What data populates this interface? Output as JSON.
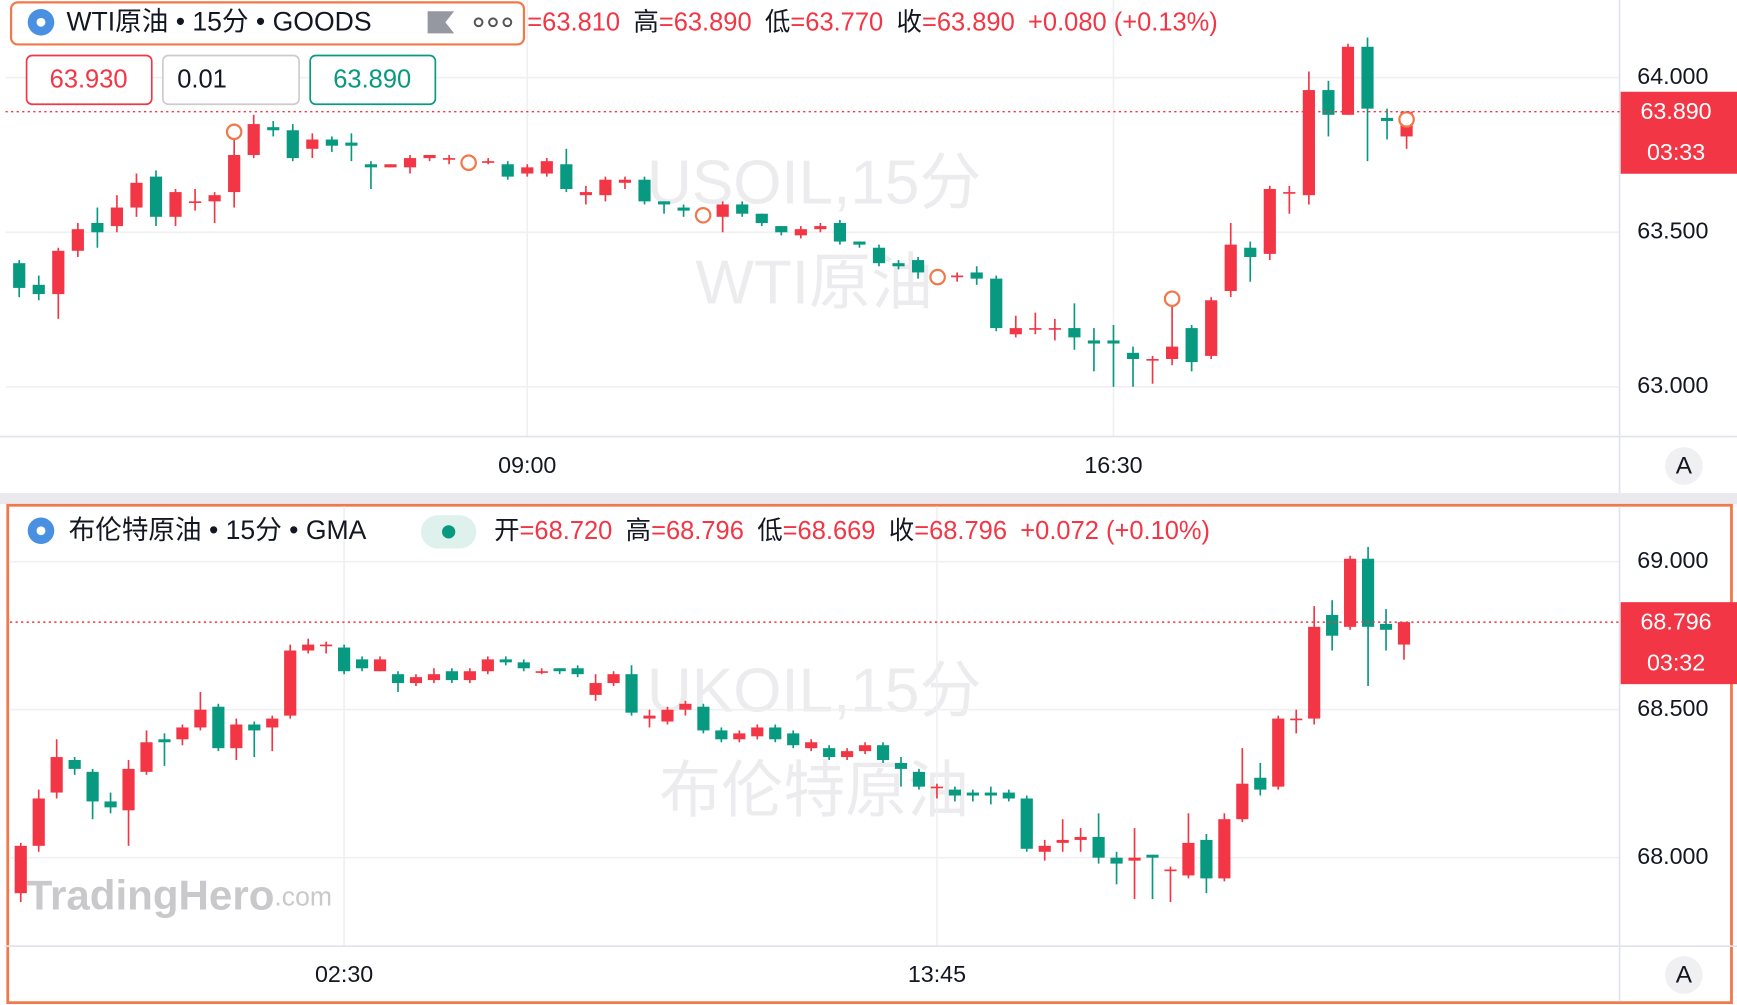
{
  "chart_data": [
    {
      "type": "candlestick",
      "title": "WTI原油 • 15分 • GOODS",
      "info": [
        {
          "value_label": "=63.810"
        },
        {
          "label": "高",
          "value_label": "=63.890"
        },
        {
          "label": "低",
          "value_label": "=63.770"
        },
        {
          "label": "收",
          "value_label": "=63.890"
        },
        {
          "value_label": "+0.080 (+0.13%)"
        }
      ],
      "order": {
        "sell": "63.930",
        "qty": "0.01",
        "buy": "63.890"
      },
      "watermark": [
        "USOIL,15分",
        "WTI原油"
      ],
      "open": [
        63.4,
        63.33,
        63.3,
        63.44,
        63.53,
        63.52,
        63.58,
        63.68,
        63.55,
        63.6,
        63.6,
        63.63,
        63.75,
        63.84,
        63.83,
        63.77,
        63.8,
        63.79,
        63.72,
        63.71,
        63.71,
        63.74,
        63.74,
        63.74,
        63.73,
        63.72,
        63.69,
        63.69,
        63.72,
        63.62,
        63.62,
        63.66,
        63.67,
        63.6,
        63.58,
        63.57,
        63.55,
        63.59,
        63.56,
        63.52,
        63.49,
        63.51,
        63.53,
        63.47,
        63.45,
        63.4,
        63.41,
        63.35,
        63.36,
        63.37,
        63.35,
        63.17,
        63.19,
        63.19,
        63.19,
        63.15,
        63.15,
        63.11,
        63.09,
        63.09,
        63.19,
        63.1,
        63.31,
        63.45,
        63.43,
        63.63,
        63.62,
        63.96,
        63.88,
        64.1,
        63.87,
        63.81
      ],
      "high": [
        63.41,
        63.36,
        63.45,
        63.53,
        63.58,
        63.62,
        63.69,
        63.7,
        63.64,
        63.64,
        63.63,
        63.85,
        63.88,
        63.86,
        63.85,
        63.82,
        63.81,
        63.82,
        63.73,
        63.72,
        63.75,
        63.75,
        63.75,
        63.75,
        63.74,
        63.73,
        63.72,
        63.74,
        63.77,
        63.65,
        63.68,
        63.68,
        63.68,
        63.6,
        63.59,
        63.58,
        63.6,
        63.6,
        63.56,
        63.52,
        63.52,
        63.53,
        63.54,
        63.47,
        63.46,
        63.41,
        63.42,
        63.38,
        63.37,
        63.39,
        63.36,
        63.23,
        63.24,
        63.22,
        63.27,
        63.19,
        63.2,
        63.13,
        63.1,
        63.31,
        63.2,
        63.29,
        63.53,
        63.47,
        63.65,
        63.65,
        64.02,
        63.99,
        64.11,
        64.13,
        63.9,
        63.89
      ],
      "low": [
        63.29,
        63.28,
        63.22,
        63.42,
        63.45,
        63.5,
        63.55,
        63.52,
        63.52,
        63.57,
        63.53,
        63.58,
        63.74,
        63.81,
        63.73,
        63.74,
        63.76,
        63.73,
        63.64,
        63.71,
        63.69,
        63.73,
        63.72,
        63.72,
        63.72,
        63.67,
        63.68,
        63.68,
        63.63,
        63.59,
        63.6,
        63.64,
        63.59,
        63.56,
        63.55,
        63.55,
        63.5,
        63.55,
        63.52,
        63.49,
        63.48,
        63.5,
        63.46,
        63.45,
        63.39,
        63.38,
        63.35,
        63.34,
        63.34,
        63.33,
        63.18,
        63.16,
        63.17,
        63.15,
        63.12,
        63.05,
        63.0,
        63.0,
        63.01,
        63.07,
        63.05,
        63.09,
        63.29,
        63.34,
        63.41,
        63.56,
        63.59,
        63.81,
        63.88,
        63.73,
        63.8,
        63.77
      ],
      "close": [
        63.32,
        63.3,
        63.44,
        63.51,
        63.5,
        63.58,
        63.66,
        63.55,
        63.63,
        63.6,
        63.62,
        63.75,
        63.85,
        63.83,
        63.74,
        63.8,
        63.78,
        63.78,
        63.71,
        63.72,
        63.74,
        63.75,
        63.74,
        63.73,
        63.73,
        63.68,
        63.71,
        63.73,
        63.64,
        63.63,
        63.67,
        63.67,
        63.6,
        63.59,
        63.57,
        63.56,
        63.59,
        63.56,
        63.53,
        63.5,
        63.51,
        63.52,
        63.47,
        63.46,
        63.4,
        63.39,
        63.37,
        63.36,
        63.36,
        63.35,
        63.19,
        63.19,
        63.19,
        63.19,
        63.16,
        63.14,
        63.14,
        63.09,
        63.09,
        63.13,
        63.08,
        63.28,
        63.46,
        63.42,
        63.64,
        63.63,
        63.96,
        63.88,
        64.1,
        63.9,
        63.86,
        63.89
      ],
      "event_markers": [
        11,
        23,
        35,
        47,
        59,
        71
      ],
      "xlim": [
        -0.7,
        81.9
      ],
      "xticks": [
        {
          "value": 26,
          "label": "09:00"
        },
        {
          "value": 56,
          "label": "16:30"
        }
      ],
      "ylim": [
        62.839,
        64.251
      ],
      "yticks": [
        {
          "value": 63,
          "label": "63.000"
        },
        {
          "value": 63.5,
          "label": "63.500"
        },
        {
          "value": 64,
          "label": "64.000"
        }
      ],
      "last_price": {
        "value": 63.89,
        "label": "63.890"
      },
      "countdown": "03:33",
      "scale_button": "A",
      "up_color": "#f23645",
      "down_color": "#089981",
      "grid": true
    },
    {
      "type": "candlestick",
      "title": "布伦特原油 • 15分 • GMA",
      "info": [
        {
          "label": "开",
          "value_label": "=68.720"
        },
        {
          "label": "高",
          "value_label": "=68.796"
        },
        {
          "label": "低",
          "value_label": "=68.669"
        },
        {
          "label": "收",
          "value_label": "=68.796"
        },
        {
          "value_label": "+0.072 (+0.10%)"
        }
      ],
      "watermark": [
        "UKOIL,15分",
        "布伦特原油"
      ],
      "open": [
        67.88,
        68.04,
        68.22,
        68.33,
        68.29,
        68.19,
        68.16,
        68.29,
        68.4,
        68.4,
        68.44,
        68.51,
        68.37,
        68.45,
        68.44,
        68.48,
        68.7,
        68.72,
        68.71,
        68.67,
        68.63,
        68.62,
        68.59,
        68.6,
        68.63,
        68.6,
        68.63,
        68.67,
        68.66,
        68.63,
        68.64,
        68.64,
        68.55,
        68.59,
        68.62,
        68.47,
        68.46,
        68.5,
        68.51,
        68.43,
        68.4,
        68.41,
        68.44,
        68.42,
        68.37,
        68.37,
        68.34,
        68.36,
        68.38,
        68.32,
        68.29,
        68.24,
        68.23,
        68.22,
        68.22,
        68.22,
        68.2,
        68.02,
        68.05,
        68.06,
        68.07,
        68.0,
        67.99,
        68.01,
        67.96,
        67.94,
        68.06,
        67.93,
        68.13,
        68.27,
        68.24,
        68.47,
        68.47,
        68.82,
        68.78,
        69.01,
        68.79,
        68.72
      ],
      "high": [
        68.05,
        68.23,
        68.4,
        68.34,
        68.3,
        68.22,
        68.33,
        68.43,
        68.42,
        68.45,
        68.56,
        68.52,
        68.47,
        68.46,
        68.48,
        68.72,
        68.74,
        68.73,
        68.72,
        68.68,
        68.68,
        68.63,
        68.62,
        68.64,
        68.64,
        68.64,
        68.68,
        68.68,
        68.67,
        68.64,
        68.64,
        68.65,
        68.62,
        68.63,
        68.65,
        68.5,
        68.51,
        68.53,
        68.52,
        68.44,
        68.43,
        68.45,
        68.45,
        68.43,
        68.4,
        68.38,
        68.37,
        68.39,
        68.39,
        68.34,
        68.3,
        68.25,
        68.24,
        68.23,
        68.24,
        68.23,
        68.21,
        68.06,
        68.13,
        68.1,
        68.15,
        68.02,
        68.1,
        68.01,
        67.97,
        68.15,
        68.08,
        68.15,
        68.37,
        68.32,
        68.48,
        68.5,
        68.85,
        68.87,
        69.02,
        69.05,
        68.84,
        68.796
      ],
      "low": [
        67.85,
        68.02,
        68.2,
        68.28,
        68.13,
        68.15,
        68.04,
        68.28,
        68.31,
        68.38,
        68.43,
        68.36,
        68.33,
        68.34,
        68.36,
        68.47,
        68.69,
        68.69,
        68.62,
        68.63,
        68.63,
        68.56,
        68.58,
        68.59,
        68.59,
        68.59,
        68.62,
        68.65,
        68.63,
        68.62,
        68.62,
        68.61,
        68.53,
        68.58,
        68.48,
        68.44,
        68.45,
        68.48,
        68.42,
        68.39,
        68.39,
        68.4,
        68.39,
        68.37,
        68.36,
        68.33,
        68.33,
        68.35,
        68.32,
        68.24,
        68.23,
        68.2,
        68.19,
        68.19,
        68.18,
        68.19,
        68.02,
        67.99,
        68.02,
        68.02,
        67.98,
        67.91,
        67.86,
        67.86,
        67.85,
        67.93,
        67.88,
        67.92,
        68.12,
        68.21,
        68.23,
        68.42,
        68.45,
        68.7,
        68.77,
        68.58,
        68.7,
        68.669
      ],
      "close": [
        68.04,
        68.2,
        68.34,
        68.3,
        68.19,
        68.17,
        68.3,
        68.39,
        68.39,
        68.44,
        68.5,
        68.37,
        68.45,
        68.43,
        68.47,
        68.7,
        68.72,
        68.72,
        68.63,
        68.64,
        68.67,
        68.59,
        68.61,
        68.62,
        68.6,
        68.63,
        68.67,
        68.66,
        68.64,
        68.63,
        68.63,
        68.62,
        68.59,
        68.62,
        68.49,
        68.48,
        68.5,
        68.52,
        68.43,
        68.4,
        68.42,
        68.44,
        68.4,
        68.38,
        68.39,
        68.34,
        68.36,
        68.38,
        68.33,
        68.3,
        68.24,
        68.24,
        68.21,
        68.21,
        68.21,
        68.2,
        68.03,
        68.04,
        68.06,
        68.07,
        68.0,
        67.98,
        68.0,
        68.0,
        67.96,
        68.05,
        67.93,
        68.13,
        68.25,
        68.23,
        68.47,
        68.47,
        68.78,
        68.75,
        69.01,
        68.78,
        68.77,
        68.796
      ],
      "xlim": [
        -0.6,
        89
      ],
      "xticks": [
        {
          "value": 18,
          "label": "02:30"
        },
        {
          "value": 51,
          "label": "13:45"
        }
      ],
      "ylim": [
        67.701,
        69.187
      ],
      "yticks": [
        {
          "value": 68,
          "label": "68.000"
        },
        {
          "value": 68.5,
          "label": "68.500"
        },
        {
          "value": 69,
          "label": "69.000"
        }
      ],
      "last_price": {
        "value": 68.796,
        "label": "68.796"
      },
      "countdown": "03:32",
      "scale_button": "A",
      "logo": {
        "brand": "TradingHero",
        "suffix": ".com"
      },
      "up_color": "#f23645",
      "down_color": "#089981",
      "grid": true
    }
  ]
}
